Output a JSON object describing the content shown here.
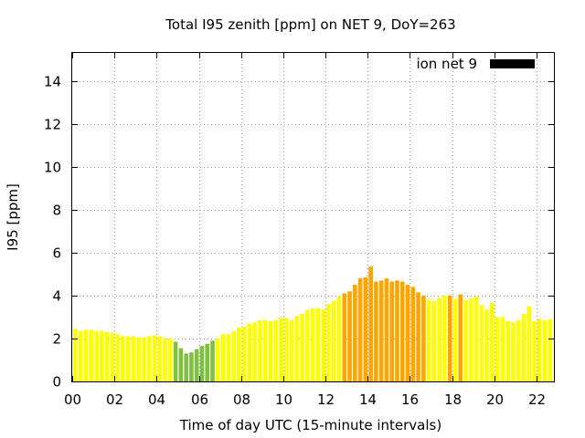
{
  "chart_data": {
    "type": "bar",
    "title": "Total I95 zenith [ppm] on NET 9, DoY=263",
    "xlabel": "Time of day UTC (15-minute intervals)",
    "ylabel": "I95 [ppm]",
    "ylim": [
      0,
      15.3
    ],
    "xlim": [
      0,
      22.83
    ],
    "bar_width_hours": 0.2,
    "grid": true,
    "legend": {
      "position": "top-right",
      "entries": [
        {
          "label": "ion net 9",
          "color": "#000000"
        }
      ]
    },
    "x_tick_values": [
      0,
      2,
      4,
      6,
      8,
      10,
      12,
      14,
      16,
      18,
      20,
      22
    ],
    "x_tick_labels": [
      "00",
      "02",
      "04",
      "06",
      "08",
      "10",
      "12",
      "14",
      "16",
      "18",
      "20",
      "22"
    ],
    "y_tick_values": [
      0,
      2,
      4,
      6,
      8,
      10,
      12,
      14
    ],
    "y_tick_labels": [
      "0",
      "2",
      "4",
      "6",
      "8",
      "10",
      "12",
      "14"
    ],
    "colors": {
      "low": "#80c040",
      "mid": "#ffff00",
      "high": "#ffa500"
    },
    "bars": [
      {
        "x": 0.25,
        "y": 2.45,
        "c": "mid"
      },
      {
        "x": 0.5,
        "y": 2.35,
        "c": "mid"
      },
      {
        "x": 0.75,
        "y": 2.4,
        "c": "mid"
      },
      {
        "x": 1.0,
        "y": 2.4,
        "c": "mid"
      },
      {
        "x": 1.25,
        "y": 2.35,
        "c": "mid"
      },
      {
        "x": 1.5,
        "y": 2.35,
        "c": "mid"
      },
      {
        "x": 1.75,
        "y": 2.3,
        "c": "mid"
      },
      {
        "x": 2.0,
        "y": 2.25,
        "c": "mid"
      },
      {
        "x": 2.25,
        "y": 2.2,
        "c": "mid"
      },
      {
        "x": 2.5,
        "y": 2.1,
        "c": "mid"
      },
      {
        "x": 2.75,
        "y": 2.1,
        "c": "mid"
      },
      {
        "x": 3.0,
        "y": 2.1,
        "c": "mid"
      },
      {
        "x": 3.25,
        "y": 2.05,
        "c": "mid"
      },
      {
        "x": 3.5,
        "y": 2.05,
        "c": "mid"
      },
      {
        "x": 3.75,
        "y": 2.1,
        "c": "mid"
      },
      {
        "x": 4.0,
        "y": 2.15,
        "c": "mid"
      },
      {
        "x": 4.25,
        "y": 2.1,
        "c": "mid"
      },
      {
        "x": 4.5,
        "y": 2.0,
        "c": "mid"
      },
      {
        "x": 4.75,
        "y": 2.0,
        "c": "mid"
      },
      {
        "x": 5.0,
        "y": 1.85,
        "c": "low"
      },
      {
        "x": 5.25,
        "y": 1.55,
        "c": "low"
      },
      {
        "x": 5.5,
        "y": 1.3,
        "c": "low"
      },
      {
        "x": 5.75,
        "y": 1.35,
        "c": "low"
      },
      {
        "x": 6.0,
        "y": 1.5,
        "c": "low"
      },
      {
        "x": 6.25,
        "y": 1.65,
        "c": "low"
      },
      {
        "x": 6.5,
        "y": 1.75,
        "c": "low"
      },
      {
        "x": 6.75,
        "y": 1.9,
        "c": "low"
      },
      {
        "x": 7.0,
        "y": 2.0,
        "c": "mid"
      },
      {
        "x": 7.25,
        "y": 2.2,
        "c": "mid"
      },
      {
        "x": 7.5,
        "y": 2.2,
        "c": "mid"
      },
      {
        "x": 7.75,
        "y": 2.35,
        "c": "mid"
      },
      {
        "x": 8.0,
        "y": 2.5,
        "c": "mid"
      },
      {
        "x": 8.25,
        "y": 2.55,
        "c": "mid"
      },
      {
        "x": 8.5,
        "y": 2.7,
        "c": "mid"
      },
      {
        "x": 8.75,
        "y": 2.75,
        "c": "mid"
      },
      {
        "x": 9.0,
        "y": 2.85,
        "c": "mid"
      },
      {
        "x": 9.25,
        "y": 2.85,
        "c": "mid"
      },
      {
        "x": 9.5,
        "y": 2.8,
        "c": "mid"
      },
      {
        "x": 9.75,
        "y": 2.85,
        "c": "mid"
      },
      {
        "x": 10.0,
        "y": 2.95,
        "c": "mid"
      },
      {
        "x": 10.25,
        "y": 2.95,
        "c": "mid"
      },
      {
        "x": 10.5,
        "y": 2.85,
        "c": "mid"
      },
      {
        "x": 10.75,
        "y": 3.05,
        "c": "mid"
      },
      {
        "x": 11.0,
        "y": 3.15,
        "c": "mid"
      },
      {
        "x": 11.25,
        "y": 3.3,
        "c": "mid"
      },
      {
        "x": 11.5,
        "y": 3.4,
        "c": "mid"
      },
      {
        "x": 11.75,
        "y": 3.4,
        "c": "mid"
      },
      {
        "x": 12.0,
        "y": 3.35,
        "c": "mid"
      },
      {
        "x": 12.25,
        "y": 3.6,
        "c": "mid"
      },
      {
        "x": 12.5,
        "y": 3.75,
        "c": "mid"
      },
      {
        "x": 12.75,
        "y": 3.95,
        "c": "mid"
      },
      {
        "x": 13.0,
        "y": 4.1,
        "c": "high"
      },
      {
        "x": 13.25,
        "y": 4.2,
        "c": "high"
      },
      {
        "x": 13.5,
        "y": 4.5,
        "c": "high"
      },
      {
        "x": 13.75,
        "y": 4.8,
        "c": "high"
      },
      {
        "x": 14.0,
        "y": 4.85,
        "c": "high"
      },
      {
        "x": 14.25,
        "y": 5.35,
        "c": "high"
      },
      {
        "x": 14.5,
        "y": 4.65,
        "c": "high"
      },
      {
        "x": 14.75,
        "y": 4.7,
        "c": "high"
      },
      {
        "x": 15.0,
        "y": 4.8,
        "c": "high"
      },
      {
        "x": 15.25,
        "y": 4.65,
        "c": "high"
      },
      {
        "x": 15.5,
        "y": 4.7,
        "c": "high"
      },
      {
        "x": 15.75,
        "y": 4.65,
        "c": "high"
      },
      {
        "x": 16.0,
        "y": 4.5,
        "c": "high"
      },
      {
        "x": 16.25,
        "y": 4.4,
        "c": "high"
      },
      {
        "x": 16.5,
        "y": 4.15,
        "c": "high"
      },
      {
        "x": 16.75,
        "y": 4.0,
        "c": "high"
      },
      {
        "x": 17.0,
        "y": 3.8,
        "c": "mid"
      },
      {
        "x": 17.25,
        "y": 3.75,
        "c": "mid"
      },
      {
        "x": 17.5,
        "y": 3.9,
        "c": "mid"
      },
      {
        "x": 17.75,
        "y": 4.0,
        "c": "mid"
      },
      {
        "x": 18.0,
        "y": 4.0,
        "c": "high"
      },
      {
        "x": 18.25,
        "y": 3.85,
        "c": "mid"
      },
      {
        "x": 18.5,
        "y": 4.05,
        "c": "high"
      },
      {
        "x": 18.75,
        "y": 3.8,
        "c": "mid"
      },
      {
        "x": 19.0,
        "y": 3.85,
        "c": "mid"
      },
      {
        "x": 19.25,
        "y": 3.95,
        "c": "mid"
      },
      {
        "x": 19.5,
        "y": 3.55,
        "c": "mid"
      },
      {
        "x": 19.75,
        "y": 3.35,
        "c": "mid"
      },
      {
        "x": 20.0,
        "y": 3.65,
        "c": "mid"
      },
      {
        "x": 20.25,
        "y": 3.0,
        "c": "mid"
      },
      {
        "x": 20.5,
        "y": 3.0,
        "c": "mid"
      },
      {
        "x": 20.75,
        "y": 2.8,
        "c": "mid"
      },
      {
        "x": 21.0,
        "y": 2.75,
        "c": "mid"
      },
      {
        "x": 21.25,
        "y": 2.85,
        "c": "mid"
      },
      {
        "x": 21.5,
        "y": 3.15,
        "c": "mid"
      },
      {
        "x": 21.75,
        "y": 3.5,
        "c": "mid"
      },
      {
        "x": 22.0,
        "y": 2.8,
        "c": "mid"
      },
      {
        "x": 22.25,
        "y": 2.9,
        "c": "mid"
      },
      {
        "x": 22.5,
        "y": 2.85,
        "c": "mid"
      },
      {
        "x": 22.75,
        "y": 2.9,
        "c": "mid"
      }
    ]
  }
}
